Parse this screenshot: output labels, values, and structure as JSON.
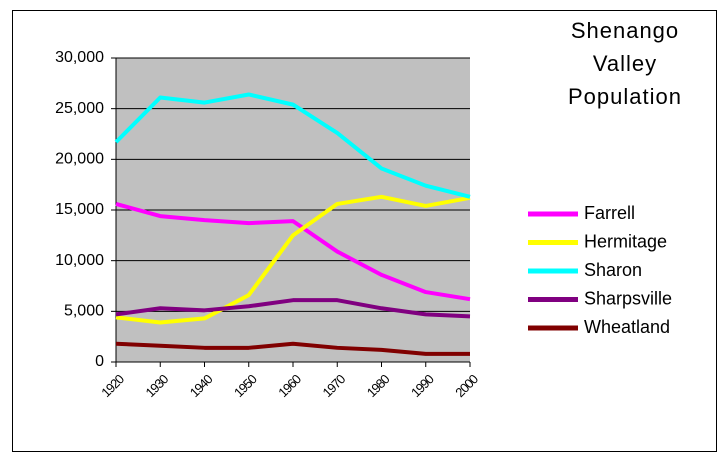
{
  "chart_data": {
    "type": "line",
    "title": "Shenango Valley Population",
    "categories": [
      "1920",
      "1930",
      "1940",
      "1950",
      "1960",
      "1970",
      "1980",
      "1990",
      "2000"
    ],
    "series": [
      {
        "name": "Farrell",
        "color": "#ff00ff",
        "values": [
          15600,
          14400,
          14000,
          13700,
          13900,
          10900,
          8600,
          6900,
          6200
        ]
      },
      {
        "name": "Hermitage",
        "color": "#ffff00",
        "values": [
          4400,
          3900,
          4300,
          6600,
          12500,
          15600,
          16300,
          15400,
          16200
        ]
      },
      {
        "name": "Sharon",
        "color": "#00ffff",
        "values": [
          21700,
          26100,
          25600,
          26400,
          25400,
          22600,
          19100,
          17400,
          16300
        ]
      },
      {
        "name": "Sharpsville",
        "color": "#800080",
        "values": [
          4700,
          5300,
          5100,
          5500,
          6100,
          6100,
          5300,
          4700,
          4500
        ]
      },
      {
        "name": "Wheatland",
        "color": "#800000",
        "values": [
          1800,
          1600,
          1400,
          1400,
          1800,
          1400,
          1200,
          800,
          800
        ]
      }
    ],
    "ylim": [
      0,
      30000
    ],
    "yticks": [
      0,
      {
        "value": 5000,
        "label": "5,000"
      },
      {
        "value": 10000,
        "label": "10,000"
      },
      {
        "value": 15000,
        "label": "15,000"
      },
      {
        "value": 20000,
        "label": "20,000"
      },
      {
        "value": 25000,
        "label": "25,000"
      },
      {
        "value": 30000,
        "label": "30,000"
      }
    ],
    "grid": true,
    "legend": "right"
  }
}
